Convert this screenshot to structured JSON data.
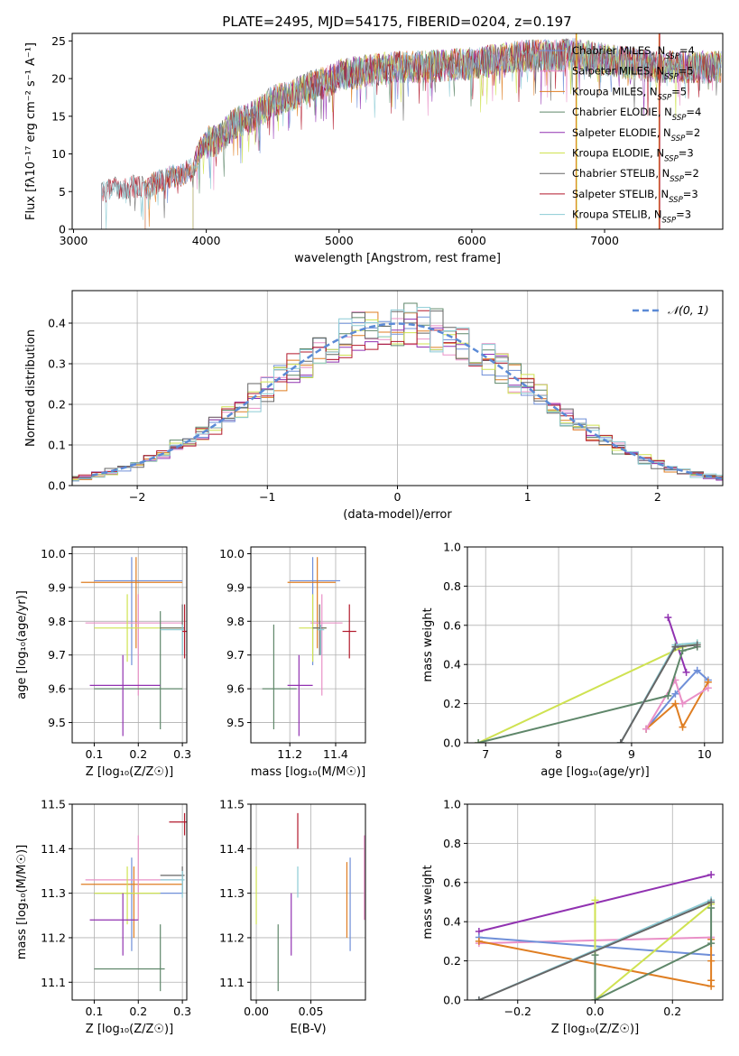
{
  "figure": {
    "title": "PLATE=2495, MJD=54175, FIBERID=0204, z=0.197"
  },
  "colors": {
    "chabrier_miles": "#6f8fd8",
    "salpeter_miles": "#e990c7",
    "kroupa_miles": "#df7e22",
    "chabrier_elodie": "#5f876a",
    "salpeter_elodie": "#9132b1",
    "kroupa_elodie": "#cfe251",
    "chabrier_stelib": "#666666",
    "salpeter_stelib": "#b2182b",
    "kroupa_stelib": "#8ccbd5"
  },
  "chart_data": [
    {
      "id": "spectrum",
      "type": "line",
      "title": "PLATE=2495, MJD=54175, FIBERID=0204, z=0.197",
      "xlabel": "wavelength [Angstrom, rest frame]",
      "ylabel": "Flux [fλ10⁻¹⁷ erg cm⁻² s⁻¹ A⁻¹]",
      "xlim": [
        2990,
        7890
      ],
      "ylim": [
        0,
        26
      ],
      "xticks": [
        3000,
        4000,
        5000,
        6000,
        7000
      ],
      "yticks": [
        0,
        5,
        10,
        15,
        20,
        25
      ],
      "grid": false,
      "legend_position": "top-right",
      "envelope": {
        "x": [
          3210,
          3300,
          3400,
          3500,
          3550,
          3600,
          3700,
          3800,
          3900,
          3950,
          4000,
          4100,
          4200,
          4300,
          4400,
          4500,
          4600,
          4700,
          4800,
          4900,
          5000,
          5200,
          5400,
          5600,
          5800,
          6000,
          6200,
          6400,
          6600,
          6800,
          7000,
          7200,
          7400,
          7600,
          7880
        ],
        "y": [
          5.0,
          5.5,
          5.5,
          5.8,
          5.0,
          6.0,
          6.8,
          7.2,
          8.0,
          10.5,
          11.5,
          12.0,
          14.0,
          14.5,
          15.5,
          17.0,
          17.5,
          18.2,
          19.0,
          19.5,
          20.5,
          21.0,
          21.5,
          21.5,
          21.8,
          22.0,
          22.5,
          23.0,
          23.0,
          23.2,
          22.5,
          22.0,
          21.5,
          21.5,
          21.5
        ]
      },
      "series": [
        {
          "name": "Chabrier MILES, N_SSP=4",
          "color": "#6f8fd8",
          "nssp": "4",
          "start": 3540
        },
        {
          "name": "Salpeter MILES, N_SSP=5",
          "color": "#e990c7",
          "nssp": "5",
          "start": 3540
        },
        {
          "name": "Kroupa MILES, N_SSP=5",
          "color": "#df7e22",
          "nssp": "5",
          "start": 3540
        },
        {
          "name": "Chabrier ELODIE, N_SSP=4",
          "color": "#5f876a",
          "nssp": "4",
          "start": 3900
        },
        {
          "name": "Salpeter ELODIE, N_SSP=2",
          "color": "#9132b1",
          "nssp": "2",
          "start": 3900
        },
        {
          "name": "Kroupa ELODIE, N_SSP=3",
          "color": "#cfe251",
          "nssp": "3",
          "start": 3900
        },
        {
          "name": "Chabrier STELIB, N_SSP=2",
          "color": "#666666",
          "nssp": "2",
          "start": 3210
        },
        {
          "name": "Salpeter STELIB, N_SSP=3",
          "color": "#b2182b",
          "nssp": "3",
          "start": 3210
        },
        {
          "name": "Kroupa STELIB, N_SSP=3",
          "color": "#8ccbd5",
          "nssp": "3",
          "start": 3210
        }
      ],
      "legend_labels": [
        "Chabrier MILES, N",
        "Salpeter MILES, N",
        "Kroupa MILES, N",
        "Chabrier ELODIE, N",
        "Salpeter ELODIE, N",
        "Kroupa ELODIE, N",
        "Chabrier STELIB, N",
        "Salpeter STELIB, N",
        "Kroupa STELIB, N"
      ],
      "legend_suffix": "SSP"
    },
    {
      "id": "residuals",
      "type": "histogram",
      "xlabel": "(data-model)/error",
      "ylabel": "Normed distribution",
      "xlim": [
        -2.5,
        2.5
      ],
      "ylim": [
        0,
        0.48
      ],
      "xticks": [
        -2,
        -1,
        0,
        1,
        2
      ],
      "yticks": [
        0.0,
        0.1,
        0.2,
        0.3,
        0.4
      ],
      "grid": true,
      "legend_position": "top-right",
      "reference_label": "𝒩(0, 1)",
      "reference_color": "#5b8ad6",
      "bin_width": 0.1
    },
    {
      "id": "age_vs_Z",
      "type": "errorbar",
      "xlabel": "Z [log₁₀(Z/Z☉)]",
      "ylabel": "age  [log₁₀(age/yr)]",
      "xlim": [
        0.05,
        0.31
      ],
      "ylim": [
        9.44,
        10.02
      ],
      "xticks": [
        0.1,
        0.2,
        0.3
      ],
      "yticks": [
        9.5,
        9.6,
        9.7,
        9.8,
        9.9,
        10.0
      ],
      "grid": true
    },
    {
      "id": "age_vs_mass",
      "type": "errorbar",
      "xlabel": "mass [log₁₀(M/M☉)]",
      "xlim": [
        11.03,
        11.53
      ],
      "ylim": [
        9.44,
        10.02
      ],
      "xticks": [
        11.2,
        11.4
      ],
      "yticks": [
        9.5,
        9.6,
        9.7,
        9.8,
        9.9,
        10.0
      ],
      "grid": true
    },
    {
      "id": "weight_vs_age",
      "type": "line",
      "xlabel": "age  [log₁₀(age/yr)]",
      "ylabel": "mass weight",
      "xlim": [
        6.75,
        10.25
      ],
      "ylim": [
        0,
        1.0
      ],
      "xticks": [
        7,
        8,
        9,
        10
      ],
      "yticks": [
        0.0,
        0.2,
        0.4,
        0.6,
        0.8,
        1.0
      ],
      "grid": true
    },
    {
      "id": "mass_vs_Z",
      "type": "errorbar",
      "xlabel": "Z [log₁₀(Z/Z☉)]",
      "ylabel": "mass [log₁₀(M/M☉)]",
      "xlim": [
        0.05,
        0.31
      ],
      "ylim": [
        11.06,
        11.5
      ],
      "xticks": [
        0.1,
        0.2,
        0.3
      ],
      "yticks": [
        11.1,
        11.2,
        11.3,
        11.4,
        11.5
      ],
      "grid": true
    },
    {
      "id": "mass_vs_ebv",
      "type": "errorbar",
      "xlabel": "E(B-V)",
      "xlim": [
        -0.005,
        0.1
      ],
      "ylim": [
        11.06,
        11.5
      ],
      "xticks": [
        0.0,
        0.05
      ],
      "yticks": [
        11.1,
        11.2,
        11.3,
        11.4,
        11.5
      ],
      "grid": true
    },
    {
      "id": "weight_vs_Z",
      "type": "line",
      "xlabel": "Z [log₁₀(Z/Z☉)]",
      "ylabel": "mass weight",
      "xlim": [
        -0.33,
        0.33
      ],
      "ylim": [
        0,
        1.0
      ],
      "xticks": [
        -0.2,
        0.0,
        0.2
      ],
      "yticks": [
        0.0,
        0.2,
        0.4,
        0.6,
        0.8,
        1.0
      ],
      "grid": true
    }
  ],
  "histograms": [
    {
      "color": "#6f8fd8",
      "seed": 11
    },
    {
      "color": "#e990c7",
      "seed": 23
    },
    {
      "color": "#df7e22",
      "seed": 37
    },
    {
      "color": "#5f876a",
      "seed": 41
    },
    {
      "color": "#9132b1",
      "seed": 53
    },
    {
      "color": "#cfe251",
      "seed": 67
    },
    {
      "color": "#666666",
      "seed": 71
    },
    {
      "color": "#b2182b",
      "seed": 83
    },
    {
      "color": "#8ccbd5",
      "seed": 97
    }
  ],
  "age_vs_Z_points": [
    {
      "color": "#6f8fd8",
      "x": 0.185,
      "xe": [
        0.1,
        0.3
      ],
      "y": 9.92,
      "ye": [
        9.67,
        9.99
      ]
    },
    {
      "color": "#df7e22",
      "x": 0.195,
      "xe": [
        0.07,
        0.3
      ],
      "y": 9.915,
      "ye": [
        9.72,
        9.99
      ]
    },
    {
      "color": "#e990c7",
      "x": 0.2,
      "xe": [
        0.08,
        0.3
      ],
      "y": 9.795,
      "ye": [
        9.58,
        9.88
      ]
    },
    {
      "color": "#cfe251",
      "x": 0.175,
      "xe": [
        0.1,
        0.3
      ],
      "y": 9.78,
      "ye": [
        9.68,
        9.88
      ]
    },
    {
      "color": "#5f876a",
      "x": 0.25,
      "xe": [
        0.1,
        0.3
      ],
      "y": 9.6,
      "ye": [
        9.48,
        9.83
      ]
    },
    {
      "color": "#9132b1",
      "x": 0.165,
      "xe": [
        0.09,
        0.25
      ],
      "y": 9.61,
      "ye": [
        9.46,
        9.7
      ]
    },
    {
      "color": "#666666",
      "x": 0.3,
      "xe": [
        0.25,
        0.305
      ],
      "y": 9.78,
      "ye": [
        9.7,
        9.85
      ]
    },
    {
      "color": "#8ccbd5",
      "x": 0.3,
      "xe": [
        0.25,
        0.305
      ],
      "y": 9.775,
      "ye": [
        9.7,
        9.79
      ]
    },
    {
      "color": "#b2182b",
      "x": 0.305,
      "xe": [
        0.3,
        0.31
      ],
      "y": 9.77,
      "ye": [
        9.69,
        9.85
      ]
    }
  ],
  "age_vs_mass_points": [
    {
      "color": "#6f8fd8",
      "x": 11.3,
      "xe": [
        11.2,
        11.42
      ],
      "y": 9.92,
      "ye": [
        9.67,
        9.99
      ]
    },
    {
      "color": "#df7e22",
      "x": 11.32,
      "xe": [
        11.19,
        11.4
      ],
      "y": 9.915,
      "ye": [
        9.72,
        9.99
      ]
    },
    {
      "color": "#e990c7",
      "x": 11.34,
      "xe": [
        11.29,
        11.43
      ],
      "y": 9.795,
      "ye": [
        9.58,
        9.88
      ]
    },
    {
      "color": "#cfe251",
      "x": 11.3,
      "xe": [
        11.24,
        11.36
      ],
      "y": 9.78,
      "ye": [
        9.68,
        9.88
      ]
    },
    {
      "color": "#5f876a",
      "x": 11.13,
      "xe": [
        11.08,
        11.23
      ],
      "y": 9.6,
      "ye": [
        9.48,
        9.79
      ]
    },
    {
      "color": "#9132b1",
      "x": 11.24,
      "xe": [
        11.19,
        11.3
      ],
      "y": 9.61,
      "ye": [
        9.46,
        9.7
      ]
    },
    {
      "color": "#666666",
      "x": 11.33,
      "xe": [
        11.3,
        11.36
      ],
      "y": 9.78,
      "ye": [
        9.7,
        9.85
      ]
    },
    {
      "color": "#8ccbd5",
      "x": 11.335,
      "xe": [
        11.32,
        11.35
      ],
      "y": 9.775,
      "ye": [
        9.7,
        9.79
      ]
    },
    {
      "color": "#b2182b",
      "x": 11.46,
      "xe": [
        11.43,
        11.49
      ],
      "y": 9.77,
      "ye": [
        9.69,
        9.85
      ]
    }
  ],
  "mass_vs_Z_points": [
    {
      "color": "#6f8fd8",
      "x": 0.185,
      "xe": [
        0.1,
        0.3
      ],
      "y": 11.3,
      "ye": [
        11.17,
        11.38
      ]
    },
    {
      "color": "#df7e22",
      "x": 0.19,
      "xe": [
        0.07,
        0.3
      ],
      "y": 11.32,
      "ye": [
        11.2,
        11.36
      ]
    },
    {
      "color": "#e990c7",
      "x": 0.2,
      "xe": [
        0.08,
        0.3
      ],
      "y": 11.33,
      "ye": [
        11.24,
        11.43
      ]
    },
    {
      "color": "#cfe251",
      "x": 0.175,
      "xe": [
        0.1,
        0.25
      ],
      "y": 11.3,
      "ye": [
        11.23,
        11.36
      ]
    },
    {
      "color": "#5f876a",
      "x": 0.25,
      "xe": [
        0.1,
        0.26
      ],
      "y": 11.13,
      "ye": [
        11.08,
        11.23
      ]
    },
    {
      "color": "#9132b1",
      "x": 0.165,
      "xe": [
        0.09,
        0.2
      ],
      "y": 11.24,
      "ye": [
        11.16,
        11.3
      ]
    },
    {
      "color": "#666666",
      "x": 0.3,
      "xe": [
        0.25,
        0.305
      ],
      "y": 11.34,
      "ye": [
        11.3,
        11.36
      ]
    },
    {
      "color": "#8ccbd5",
      "x": 0.3,
      "xe": [
        0.25,
        0.305
      ],
      "y": 11.33,
      "ye": [
        11.29,
        11.35
      ]
    },
    {
      "color": "#b2182b",
      "x": 0.305,
      "xe": [
        0.27,
        0.31
      ],
      "y": 11.46,
      "ye": [
        11.43,
        11.48
      ]
    }
  ],
  "mass_vs_ebv_points": [
    {
      "color": "#cfe251",
      "x": 0.0,
      "y": 11.3,
      "ye": [
        11.23,
        11.36
      ]
    },
    {
      "color": "#5f876a",
      "x": 0.02,
      "y": 11.15,
      "ye": [
        11.08,
        11.23
      ]
    },
    {
      "color": "#9132b1",
      "x": 0.032,
      "y": 11.23,
      "ye": [
        11.16,
        11.3
      ]
    },
    {
      "color": "#8ccbd5",
      "x": 0.038,
      "y": 11.33,
      "ye": [
        11.29,
        11.36
      ]
    },
    {
      "color": "#b2182b",
      "x": 0.038,
      "y": 11.44,
      "ye": [
        11.4,
        11.48
      ]
    },
    {
      "color": "#df7e22",
      "x": 0.083,
      "y": 11.29,
      "ye": [
        11.2,
        11.37
      ]
    },
    {
      "color": "#6f8fd8",
      "x": 0.086,
      "y": 11.28,
      "ye": [
        11.17,
        11.38
      ]
    },
    {
      "color": "#e990c7",
      "x": 0.099,
      "y": 11.33,
      "ye": [
        11.24,
        11.43
      ]
    }
  ],
  "weight_vs_age_series": [
    {
      "color": "#9132b1",
      "pts": [
        [
          9.5,
          0.64
        ],
        [
          9.75,
          0.36
        ]
      ]
    },
    {
      "color": "#6f8fd8",
      "pts": [
        [
          9.2,
          0.07
        ],
        [
          9.6,
          0.25
        ],
        [
          9.9,
          0.37
        ],
        [
          10.05,
          0.32
        ]
      ]
    },
    {
      "color": "#df7e22",
      "pts": [
        [
          9.2,
          0.07
        ],
        [
          9.6,
          0.2
        ],
        [
          9.7,
          0.08
        ],
        [
          10.05,
          0.31
        ]
      ]
    },
    {
      "color": "#e990c7",
      "pts": [
        [
          9.2,
          0.07
        ],
        [
          9.6,
          0.32
        ],
        [
          9.7,
          0.2
        ],
        [
          10.05,
          0.28
        ]
      ]
    },
    {
      "color": "#cfe251",
      "pts": [
        [
          6.9,
          0.0
        ],
        [
          9.7,
          0.49
        ],
        [
          9.9,
          0.51
        ]
      ]
    },
    {
      "color": "#5f876a",
      "pts": [
        [
          6.9,
          0.0
        ],
        [
          9.5,
          0.24
        ],
        [
          9.7,
          0.47
        ],
        [
          9.9,
          0.49
        ]
      ]
    },
    {
      "color": "#8ccbd5",
      "pts": [
        [
          8.85,
          0.0
        ],
        [
          9.6,
          0.5
        ],
        [
          9.9,
          0.51
        ]
      ]
    },
    {
      "color": "#666666",
      "pts": [
        [
          8.85,
          0.0
        ],
        [
          9.6,
          0.49
        ],
        [
          9.9,
          0.5
        ]
      ]
    }
  ],
  "weight_vs_Z_series": [
    {
      "color": "#9132b1",
      "pts": [
        [
          -0.3,
          0.35
        ],
        [
          0.3,
          0.64
        ]
      ]
    },
    {
      "color": "#e990c7",
      "pts": [
        [
          -0.3,
          0.29
        ],
        [
          0.3,
          0.32
        ]
      ]
    },
    {
      "color": "#6f8fd8",
      "pts": [
        [
          -0.3,
          0.32
        ],
        [
          0.3,
          0.23
        ]
      ]
    },
    {
      "color": "#df7e22",
      "pts": [
        [
          -0.3,
          0.3
        ],
        [
          0.3,
          0.07
        ],
        [
          0.3,
          0.1
        ],
        [
          0.3,
          0.2
        ],
        [
          0.3,
          0.31
        ]
      ]
    },
    {
      "color": "#cfe251",
      "pts": [
        [
          0.0,
          0.51
        ],
        [
          0.0,
          0.0
        ],
        [
          0.3,
          0.49
        ]
      ]
    },
    {
      "color": "#5f876a",
      "pts": [
        [
          0.0,
          0.23
        ],
        [
          0.0,
          0.0
        ],
        [
          0.3,
          0.29
        ],
        [
          0.3,
          0.47
        ]
      ]
    },
    {
      "color": "#8ccbd5",
      "pts": [
        [
          -0.3,
          0.0
        ],
        [
          0.3,
          0.51
        ]
      ]
    },
    {
      "color": "#666666",
      "pts": [
        [
          -0.3,
          0.0
        ],
        [
          0.3,
          0.5
        ]
      ]
    }
  ]
}
